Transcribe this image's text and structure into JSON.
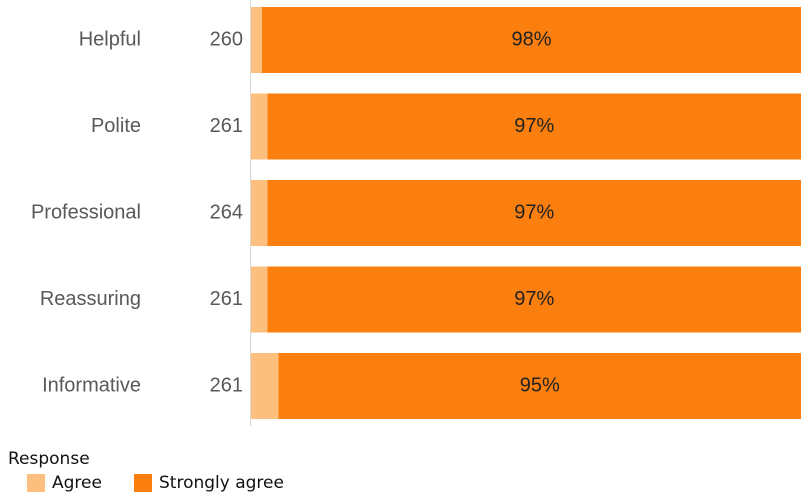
{
  "chart_data": {
    "type": "stacked_barh",
    "categories": [
      "Helpful",
      "Polite",
      "Professional",
      "Reassuring",
      "Informative"
    ],
    "counts": [
      260,
      261,
      264,
      261,
      261
    ],
    "series": [
      {
        "name": "Agree",
        "color": "#fdbf7e",
        "values": [
          2,
          3,
          3,
          3,
          5
        ]
      },
      {
        "name": "Strongly agree",
        "color": "#fb7f0e",
        "values": [
          98,
          97,
          97,
          97,
          95
        ],
        "value_labels": [
          "98%",
          "97%",
          "97%",
          "97%",
          "95%"
        ]
      }
    ],
    "xlim": [
      0,
      100
    ],
    "legend_title": "Response",
    "legend": "bottom-left"
  }
}
